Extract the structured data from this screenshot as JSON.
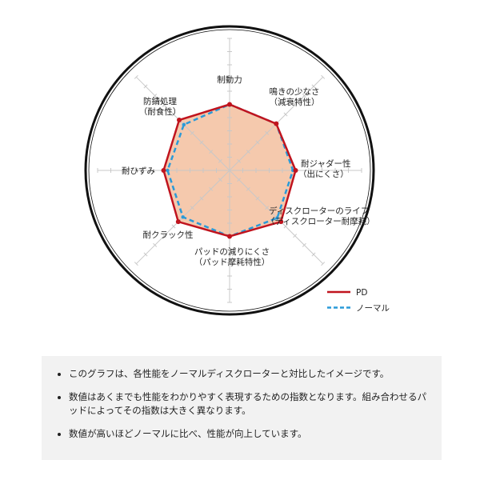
{
  "chart_data": {
    "type": "radar",
    "axes": [
      [
        "制動力"
      ],
      [
        "鳴きの少なさ",
        "（減衰特性）"
      ],
      [
        "耐ジャダー性",
        "（出にくさ）"
      ],
      [
        "ディスクローターのライフ",
        "（ディスクローター耐摩耗）"
      ],
      [
        "パッドの減りにくさ",
        "（パッド摩耗特性）"
      ],
      [
        "耐クラック性"
      ],
      [
        "耐ひずみ"
      ],
      [
        "防錆処理",
        "（耐食性）"
      ]
    ],
    "range": [
      0,
      10
    ],
    "grid": true,
    "legend_position": "bottom-right",
    "series": [
      {
        "name": "PD",
        "color": "#c0141e",
        "style": "solid",
        "values": [
          5,
          5,
          5,
          5.5,
          5,
          5.5,
          5,
          5.4
        ]
      },
      {
        "name": "ノーマル",
        "color": "#2a9ad8",
        "style": "dashed",
        "values": [
          5,
          5,
          4.8,
          5.1,
          5,
          5,
          4.7,
          4.9
        ]
      }
    ],
    "fill_color": "#f5c9ad"
  },
  "notes": [
    "このグラフは、各性能をノーマルディスクローターと対比したイメージです。",
    "数値はあくまでも性能をわかりやすく表現するための指数となります。組み合わせるパッドによってその指数は大きく異なります。",
    "数値が高いほどノーマルに比べ、性能が向上しています。"
  ]
}
